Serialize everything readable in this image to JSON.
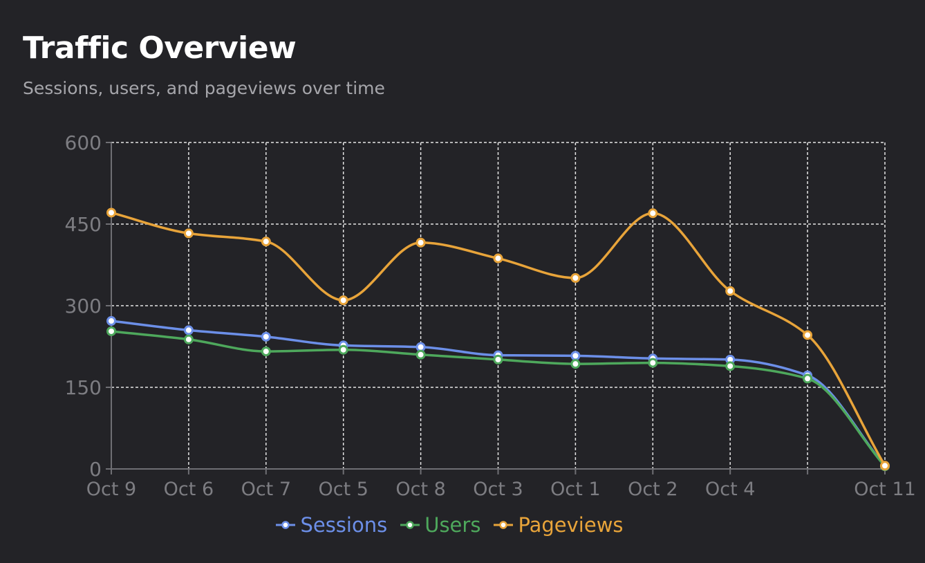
{
  "header": {
    "title": "Traffic Overview",
    "subtitle": "Sessions, users, and pageviews over time"
  },
  "colors": {
    "background": "#232327",
    "grid": "#e6e6e6",
    "axis": "#6f6f74",
    "tick_text": "#7d7d82",
    "point_fill": "#ffffff"
  },
  "chart_data": {
    "type": "line",
    "categories": [
      "Oct 9",
      "Oct 6",
      "Oct 7",
      "Oct 5",
      "Oct 8",
      "Oct 3",
      "Oct 1",
      "Oct 2",
      "Oct 4",
      "",
      "Oct 11"
    ],
    "ylim": [
      0,
      600
    ],
    "yticks": [
      0,
      150,
      300,
      450,
      600
    ],
    "grid": true,
    "smooth": true,
    "legend_position": "bottom-center",
    "series": [
      {
        "name": "Sessions",
        "color": "#6c8fe8",
        "values": [
          272,
          255,
          243,
          227,
          224,
          209,
          208,
          203,
          201,
          172,
          5
        ]
      },
      {
        "name": "Users",
        "color": "#4ea85c",
        "values": [
          253,
          238,
          216,
          219,
          210,
          201,
          193,
          195,
          189,
          166,
          5
        ]
      },
      {
        "name": "Pageviews",
        "color": "#e8a43a",
        "values": [
          471,
          433,
          418,
          310,
          416,
          387,
          351,
          470,
          327,
          246,
          6
        ]
      }
    ]
  }
}
